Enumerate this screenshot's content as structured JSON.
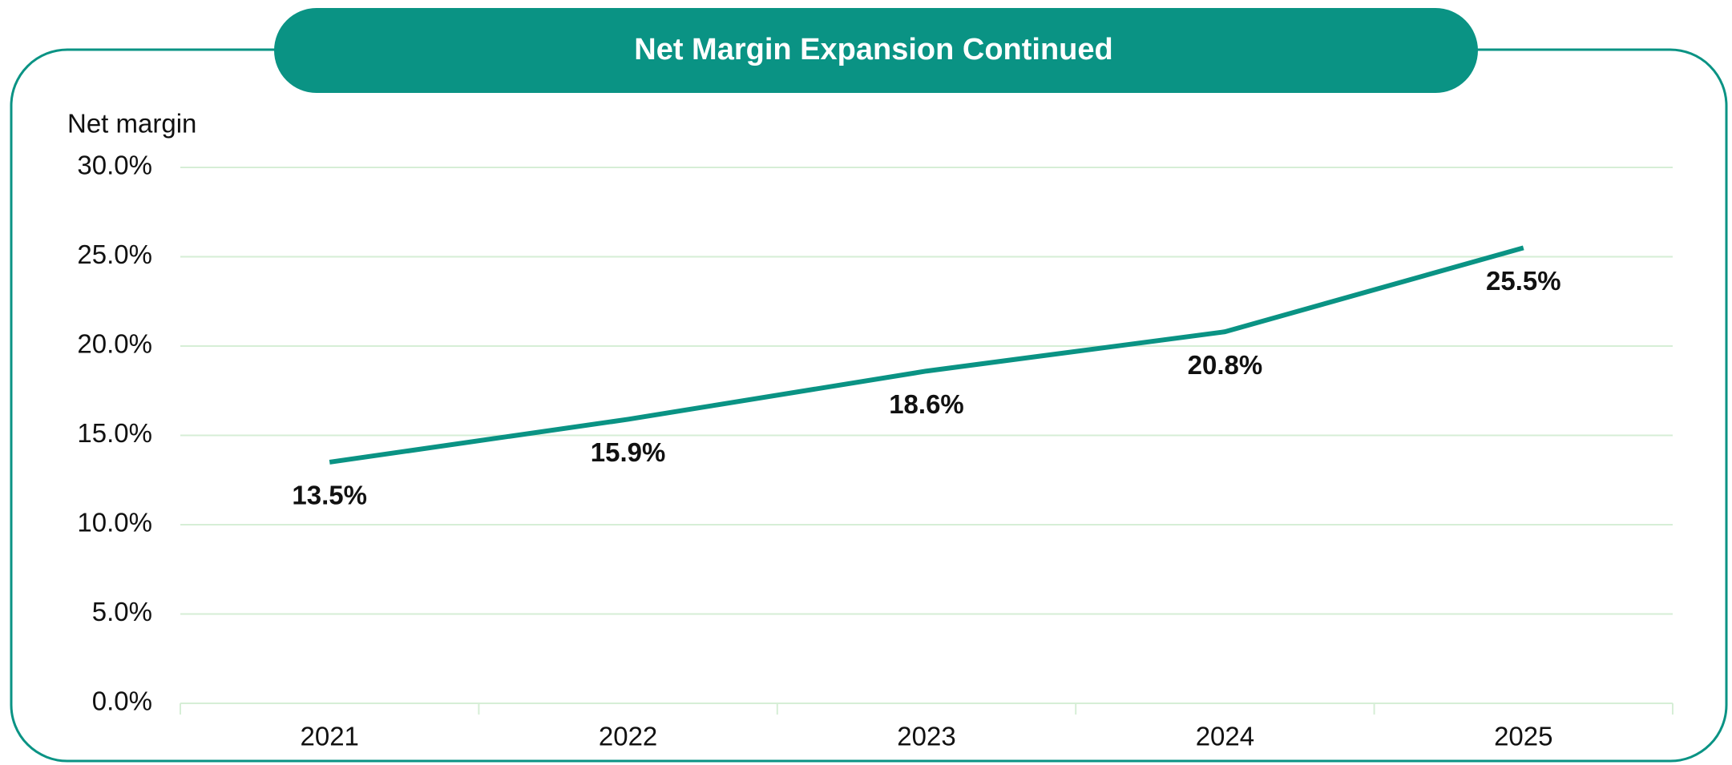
{
  "chart_data": {
    "type": "line",
    "title": "Net Margin Expansion Continued",
    "y_label": "Net margin",
    "categories": [
      "2021",
      "2022",
      "2023",
      "2024",
      "2025"
    ],
    "series": [
      {
        "name": "Net margin",
        "color": "#0a9384",
        "values": [
          13.5,
          15.9,
          18.6,
          20.8,
          25.5
        ],
        "value_labels": [
          "13.5%",
          "15.9%",
          "18.6%",
          "20.8%",
          "25.5%"
        ]
      }
    ],
    "ylim": [
      0,
      30
    ],
    "yticks": [
      {
        "value": 0,
        "label": "0.0%"
      },
      {
        "value": 5,
        "label": "5.0%"
      },
      {
        "value": 10,
        "label": "10.0%"
      },
      {
        "value": 15,
        "label": "15.0%"
      },
      {
        "value": 20,
        "label": "20.0%"
      },
      {
        "value": 25,
        "label": "25.0%"
      },
      {
        "value": 30,
        "label": "30.0%"
      }
    ],
    "grid": true
  }
}
